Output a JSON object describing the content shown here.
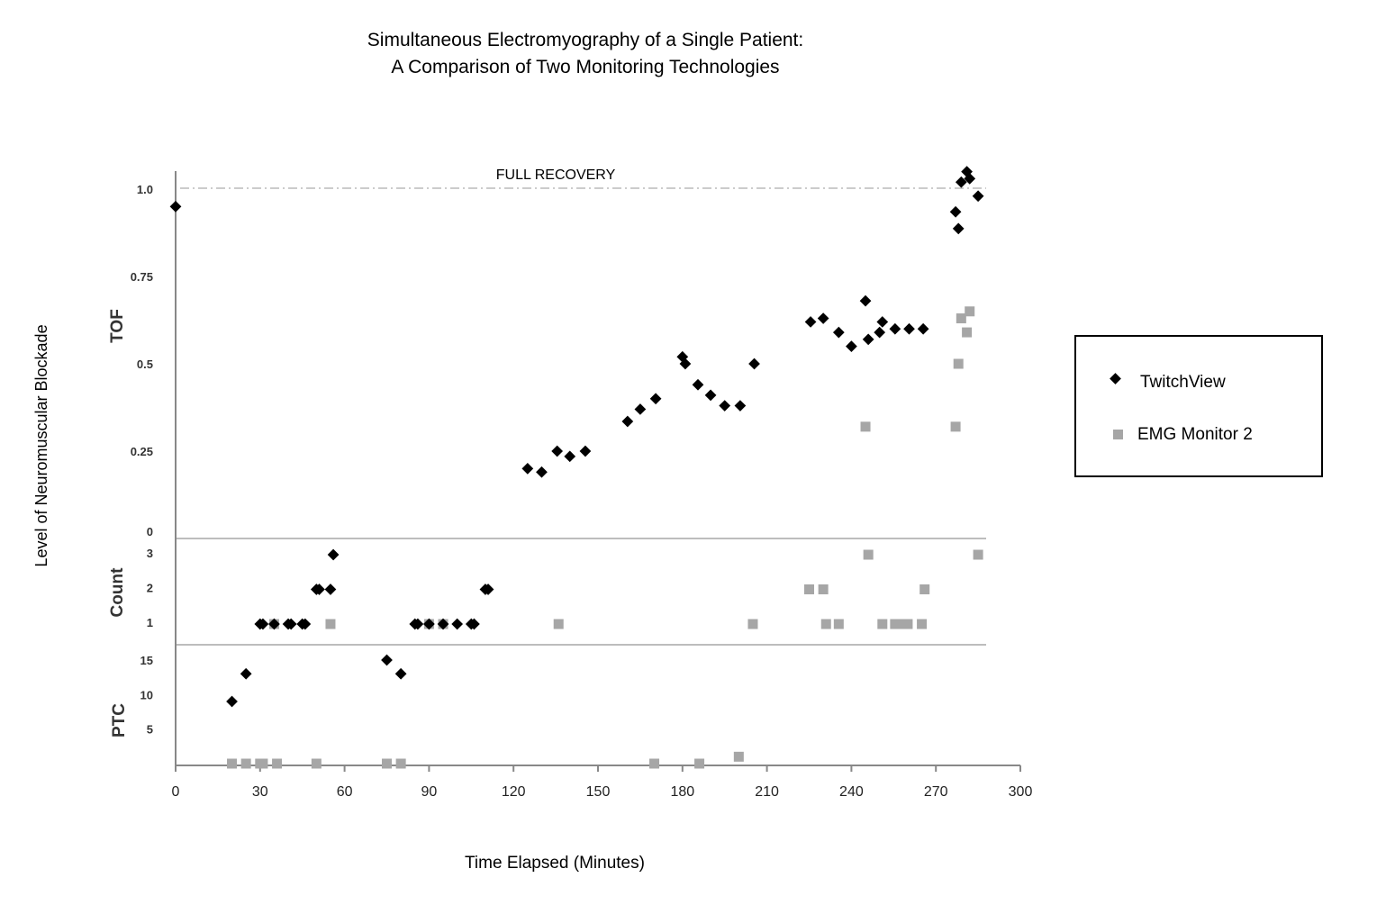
{
  "chart_data": {
    "type": "scatter",
    "title": [
      "Simultaneous Electromyography of a Single Patient:",
      "A Comparison of Two Monitoring Technologies"
    ],
    "xlabel": "Time Elapsed (Minutes)",
    "ylabel": "Level of Neuromuscular Blockade",
    "xlim": [
      0,
      300
    ],
    "xticks": [
      0,
      30,
      60,
      90,
      120,
      150,
      180,
      210,
      240,
      270,
      300
    ],
    "annotation": "FULL RECOVERY",
    "legend_position": "right",
    "grid": false,
    "panels": {
      "tof": {
        "label": "TOF",
        "ylim": [
          0,
          1.0
        ],
        "ticks": [
          "1.0",
          "0.75",
          "0.5",
          "0.25",
          "0"
        ],
        "tick_values": [
          1.0,
          0.75,
          0.5,
          0.25,
          0
        ],
        "reference_line": 1.0
      },
      "count": {
        "label": "Count",
        "ticks": [
          "3",
          "2",
          "1"
        ],
        "tick_values": [
          3,
          2,
          1
        ]
      },
      "ptc": {
        "label": "PTC",
        "ticks": [
          "15",
          "10",
          "5"
        ],
        "tick_values": [
          15,
          10,
          5
        ]
      }
    },
    "series": [
      {
        "name": "TwitchView",
        "color": "#000000",
        "marker": "diamond",
        "tof": [
          [
            0,
            0.95
          ],
          [
            125,
            0.2
          ],
          [
            130,
            0.19
          ],
          [
            135.5,
            0.25
          ],
          [
            140,
            0.235
          ],
          [
            145.5,
            0.25
          ],
          [
            160.5,
            0.335
          ],
          [
            165,
            0.37
          ],
          [
            170.5,
            0.4
          ],
          [
            180,
            0.52
          ],
          [
            181,
            0.5
          ],
          [
            185.5,
            0.44
          ],
          [
            190,
            0.41
          ],
          [
            195,
            0.38
          ],
          [
            200.5,
            0.38
          ],
          [
            205.5,
            0.5
          ],
          [
            225.5,
            0.62
          ],
          [
            230,
            0.63
          ],
          [
            235.5,
            0.59
          ],
          [
            240,
            0.55
          ],
          [
            245,
            0.68
          ],
          [
            246,
            0.57
          ],
          [
            250,
            0.59
          ],
          [
            251,
            0.62
          ],
          [
            255.5,
            0.6
          ],
          [
            260.5,
            0.6
          ],
          [
            265.5,
            0.6
          ],
          [
            277,
            0.935
          ],
          [
            278,
            0.887
          ],
          [
            279,
            1.02
          ],
          [
            281,
            1.05
          ],
          [
            282,
            1.03
          ],
          [
            285,
            0.98
          ]
        ],
        "count": [
          [
            30,
            1
          ],
          [
            31,
            1
          ],
          [
            35,
            1
          ],
          [
            40,
            1
          ],
          [
            41,
            1
          ],
          [
            45,
            1
          ],
          [
            46,
            1
          ],
          [
            50,
            2
          ],
          [
            51,
            2
          ],
          [
            55,
            2
          ],
          [
            56,
            3
          ],
          [
            85,
            1
          ],
          [
            86,
            1
          ],
          [
            90,
            1
          ],
          [
            95,
            1
          ],
          [
            100,
            1
          ],
          [
            105,
            1
          ],
          [
            106,
            1
          ],
          [
            110,
            2
          ],
          [
            111,
            2
          ]
        ],
        "ptc": [
          [
            20,
            9
          ],
          [
            25,
            13
          ],
          [
            75,
            15
          ],
          [
            80,
            13
          ]
        ]
      },
      {
        "name": "EMG Monitor 2",
        "color": "#a6a6a6",
        "marker": "square",
        "tof": [
          [
            245,
            0.32
          ],
          [
            277,
            0.32
          ],
          [
            278,
            0.5
          ],
          [
            279,
            0.63
          ],
          [
            281,
            0.59
          ],
          [
            282,
            0.65
          ]
        ],
        "count": [
          [
            35,
            1
          ],
          [
            55,
            1
          ],
          [
            90,
            1
          ],
          [
            95,
            1
          ],
          [
            136,
            1
          ],
          [
            205,
            1
          ],
          [
            225,
            2
          ],
          [
            230,
            2
          ],
          [
            231,
            1
          ],
          [
            235.5,
            1
          ],
          [
            246,
            3
          ],
          [
            251,
            1
          ],
          [
            255.5,
            1
          ],
          [
            257,
            1
          ],
          [
            260,
            1
          ],
          [
            265,
            1
          ],
          [
            266,
            2
          ],
          [
            285,
            3
          ]
        ],
        "ptc": [
          [
            20,
            0
          ],
          [
            25,
            0
          ],
          [
            30,
            0
          ],
          [
            31,
            0
          ],
          [
            36,
            0
          ],
          [
            50,
            0
          ],
          [
            75,
            0
          ],
          [
            80,
            0
          ],
          [
            170,
            0
          ],
          [
            186,
            0
          ],
          [
            200,
            1
          ]
        ]
      }
    ]
  }
}
